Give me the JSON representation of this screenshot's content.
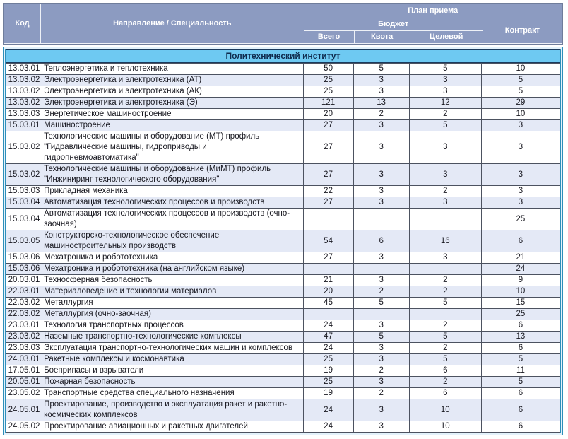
{
  "colors": {
    "header_bg": "#8c9bc1",
    "header_text": "#ffffff",
    "header_divider": "#eef1f7",
    "header_outline": "#6f7d9b",
    "section_bg": "#6ec9f2",
    "section_text": "#0f2b4e",
    "section_border": "#1a3a5c",
    "frame_color": "#2d8fba",
    "frame_gap": "#e3f2fb",
    "stripe": "#e4e9f6",
    "grid": "#4c5260",
    "text": "#17171f"
  },
  "header": {
    "col_code": "Код",
    "col_specialty": "Направление / Специальность",
    "col_plan": "План приема",
    "col_budget": "Бюджет",
    "col_total": "Всего",
    "col_quota": "Квота",
    "col_target": "Целевой",
    "col_contract": "Контракт"
  },
  "section": {
    "title": "Политехнический институт"
  },
  "rows": [
    {
      "code": "13.03.01",
      "name": "Теплоэнергетика и теплотехника",
      "total": "50",
      "quota": "5",
      "target": "5",
      "contract": "10"
    },
    {
      "code": "13.03.02",
      "name": "Электроэнергетика и электротехника (АТ)",
      "total": "25",
      "quota": "3",
      "target": "3",
      "contract": "5"
    },
    {
      "code": "13.03.02",
      "name": "Электроэнергетика и электротехника (АК)",
      "total": "25",
      "quota": "3",
      "target": "3",
      "contract": "5"
    },
    {
      "code": "13.03.02",
      "name": "Электроэнергетика и электротехника (Э)",
      "total": "121",
      "quota": "13",
      "target": "12",
      "contract": "29"
    },
    {
      "code": "13.03.03",
      "name": "Энергетическое машиностроение",
      "total": "20",
      "quota": "2",
      "target": "2",
      "contract": "10"
    },
    {
      "code": "15.03.01",
      "name": "Машиностроение",
      "total": "27",
      "quota": "3",
      "target": "5",
      "contract": "3"
    },
    {
      "code": "15.03.02",
      "name": "Технологические машины и оборудование (МТ) профиль \"Гидравлические машины, гидроприводы и гидропневмоавтоматика\"",
      "total": "27",
      "quota": "3",
      "target": "3",
      "contract": "3"
    },
    {
      "code": "15.03.02",
      "name": "Технологические машины и оборудование (МиМТ) профиль \"Инжиниринг технологического оборудования\"",
      "total": "27",
      "quota": "3",
      "target": "3",
      "contract": "3"
    },
    {
      "code": "15.03.03",
      "name": "Прикладная механика",
      "total": "22",
      "quota": "3",
      "target": "2",
      "contract": "3"
    },
    {
      "code": "15.03.04",
      "name": "Автоматизация технологических процессов и производств",
      "total": "27",
      "quota": "3",
      "target": "3",
      "contract": "3"
    },
    {
      "code": "15.03.04",
      "name": "Автоматизация технологических процессов и производств (очно-заочная)",
      "total": "",
      "quota": "",
      "target": "",
      "contract": "25"
    },
    {
      "code": "15.03.05",
      "name": "Конструкторско-технологическое обеспечение машиностроительных производств",
      "total": "54",
      "quota": "6",
      "target": "16",
      "contract": "6"
    },
    {
      "code": "15.03.06",
      "name": "Мехатроника и робототехника",
      "total": "27",
      "quota": "3",
      "target": "3",
      "contract": "21"
    },
    {
      "code": "15.03.06",
      "name": "Мехатроника и робототехника (на английском языке)",
      "total": "",
      "quota": "",
      "target": "",
      "contract": "24"
    },
    {
      "code": "20.03.01",
      "name": "Техносферная безопасность",
      "total": "21",
      "quota": "3",
      "target": "2",
      "contract": "9"
    },
    {
      "code": "22.03.01",
      "name": "Материаловедение и технологии материалов",
      "total": "20",
      "quota": "2",
      "target": "2",
      "contract": "10"
    },
    {
      "code": "22.03.02",
      "name": "Металлургия",
      "total": "45",
      "quota": "5",
      "target": "5",
      "contract": "15"
    },
    {
      "code": "22.03.02",
      "name": "Металлургия (очно-заочная)",
      "total": "",
      "quota": "",
      "target": "",
      "contract": "25"
    },
    {
      "code": "23.03.01",
      "name": "Технология транспортных процессов",
      "total": "24",
      "quota": "3",
      "target": "2",
      "contract": "6"
    },
    {
      "code": "23.03.02",
      "name": "Наземные транспортно-технологические комплексы",
      "total": "47",
      "quota": "5",
      "target": "5",
      "contract": "13"
    },
    {
      "code": "23.03.03",
      "name": "Эксплуатация транспортно-технологических машин и комплексов",
      "total": "24",
      "quota": "3",
      "target": "2",
      "contract": "6"
    },
    {
      "code": "24.03.01",
      "name": "Ракетные комплексы и космонавтика",
      "total": "25",
      "quota": "3",
      "target": "5",
      "contract": "5"
    },
    {
      "code": "17.05.01",
      "name": "Боеприпасы и взрыватели",
      "total": "19",
      "quota": "2",
      "target": "6",
      "contract": "11"
    },
    {
      "code": "20.05.01",
      "name": "Пожарная безопасность",
      "total": "25",
      "quota": "3",
      "target": "2",
      "contract": "5"
    },
    {
      "code": "23.05.02",
      "name": "Транспортные средства специального назначения",
      "total": "19",
      "quota": "2",
      "target": "6",
      "contract": "6"
    },
    {
      "code": "24.05.01",
      "name": "Проектирование, производство и эксплуатация ракет и ракетно-космических комплексов",
      "total": "24",
      "quota": "3",
      "target": "10",
      "contract": "6"
    },
    {
      "code": "24.05.02",
      "name": "Проектирование авиационных и ракетных двигателей",
      "total": "24",
      "quota": "3",
      "target": "10",
      "contract": "6"
    }
  ]
}
